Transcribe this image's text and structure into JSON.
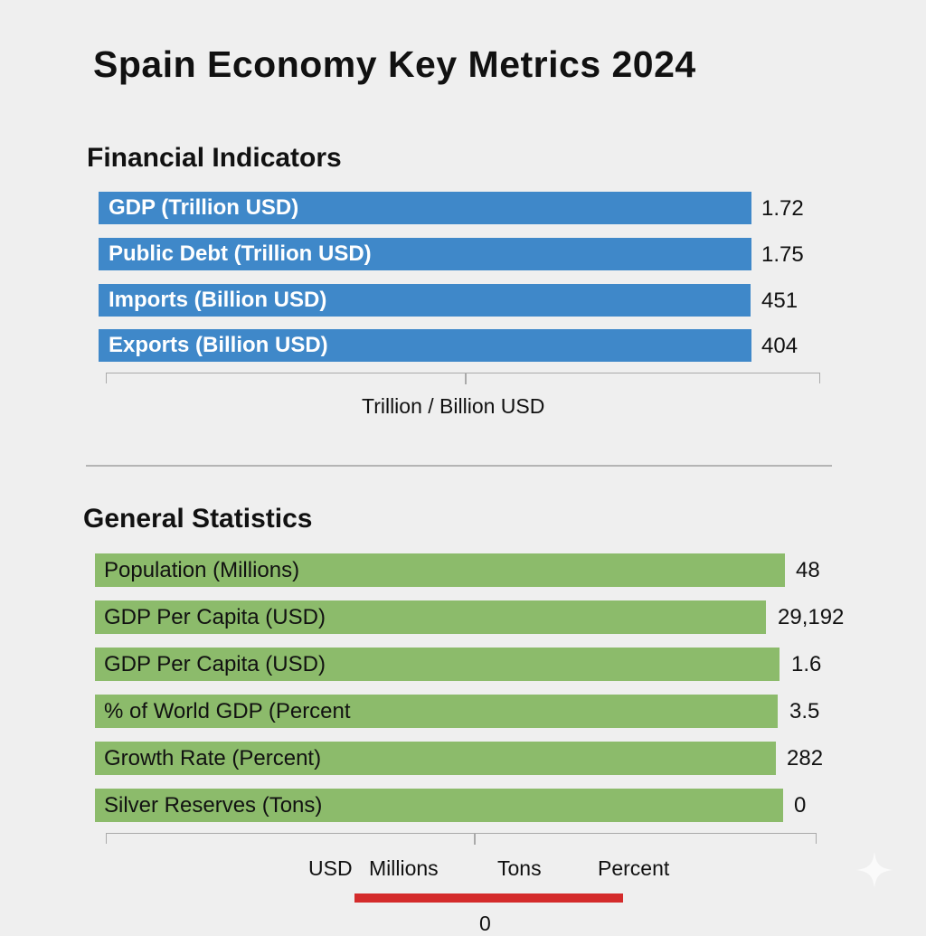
{
  "title": "Spain Economy Key Metrics 2024",
  "chart_data": [
    {
      "type": "bar",
      "orientation": "horizontal",
      "title": "Financial Indicators",
      "categories": [
        "GDP (Trillion USD)",
        "Public Debt (Trillion USD)",
        "Imports (Billion USD)",
        "Exports (Billion USD)"
      ],
      "value_labels": [
        "1.72",
        "1.75",
        "451",
        "404"
      ],
      "values": [
        1.72,
        1.75,
        451,
        404
      ],
      "xlabel": "Trillion / Billion USD",
      "color": "#3f88c9"
    },
    {
      "type": "bar",
      "orientation": "horizontal",
      "title": "General Statistics",
      "categories": [
        "Population (Millions)",
        "GDP Per Capita (USD)",
        "GDP Per Capita (USD)",
        "% of World GDP (Percent",
        "Growth Rate (Percent)",
        "Silver Reserves (Tons)"
      ],
      "value_labels": [
        "48",
        "29,192",
        "1.6",
        "3.5",
        "282",
        "0"
      ],
      "values": [
        48,
        29192,
        1.6,
        3.5,
        282,
        0
      ],
      "xlabel_parts": [
        "USD",
        "Millions",
        "Tons",
        "Percent"
      ],
      "axis_value": "0",
      "color": "#8cbb6b",
      "accent_color": "#d42b2b"
    }
  ]
}
